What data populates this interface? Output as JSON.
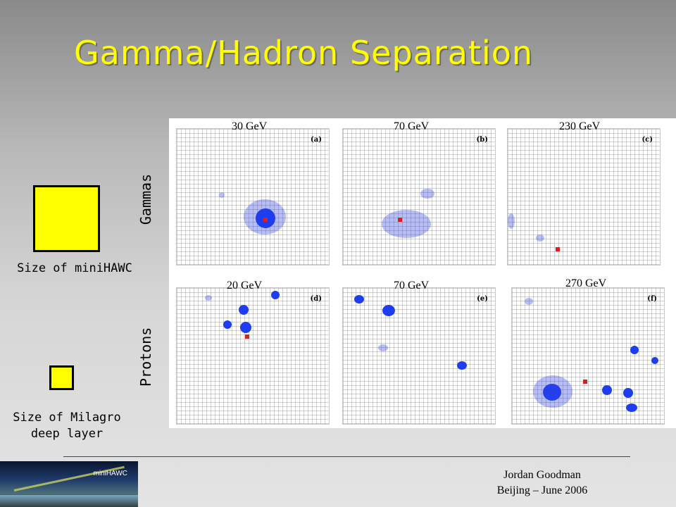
{
  "title": "Gamma/Hadron Separation",
  "rows": {
    "top_label": "Gammas",
    "bottom_label": "Protons"
  },
  "captions": {
    "minihawc": "Size of miniHAWC",
    "milagro_line1": "Size of Milagro",
    "milagro_line2": "deep layer"
  },
  "panels": [
    {
      "energy": "30 GeV",
      "letter": "(a)"
    },
    {
      "energy": "70 GeV",
      "letter": "(b)"
    },
    {
      "energy": "230 GeV",
      "letter": "(c)"
    },
    {
      "energy": "20 GeV",
      "letter": "(d)"
    },
    {
      "energy": "70 GeV",
      "letter": "(e)"
    },
    {
      "energy": "270 GeV",
      "letter": "(f)"
    }
  ],
  "logo_text": "miniHAWC",
  "footer": {
    "line1": "Jordan Goodman",
    "line2": "Beijing – June 2006"
  },
  "colors": {
    "title": "#ffff00",
    "square": "#ffff00",
    "hits": "#1f3df0",
    "core": "#e51b1b"
  }
}
